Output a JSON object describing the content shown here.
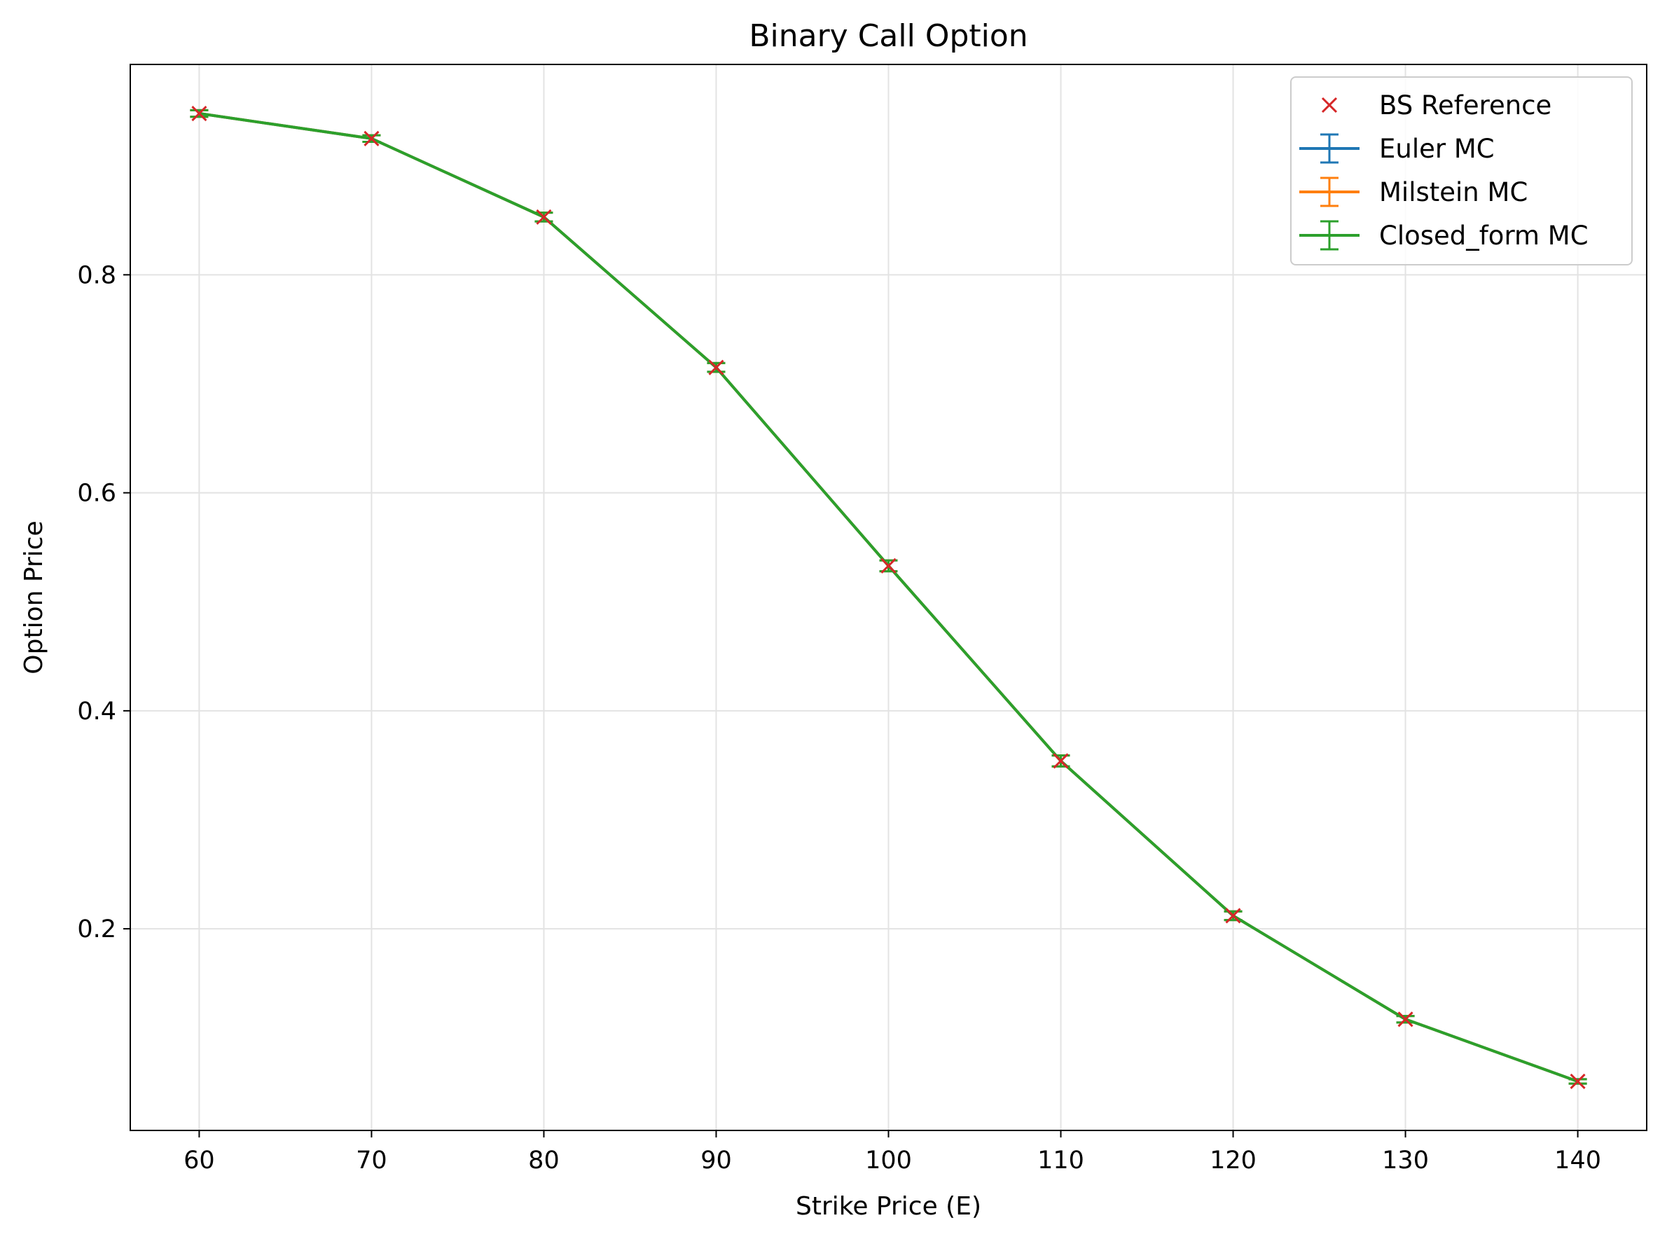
{
  "chart_data": {
    "type": "line",
    "title": "Binary Call Option",
    "xlabel": "Strike Price (E)",
    "ylabel": "Option Price",
    "x": [
      60,
      70,
      80,
      90,
      100,
      110,
      120,
      130,
      140
    ],
    "xlim": [
      56,
      144
    ],
    "ylim": [
      0.015,
      0.993
    ],
    "xticks": [
      60,
      70,
      80,
      90,
      100,
      110,
      120,
      130,
      140
    ],
    "yticks": [
      0.2,
      0.4,
      0.6,
      0.8
    ],
    "ytick_labels": [
      "0.2",
      "0.4",
      "0.6",
      "0.8"
    ],
    "grid": true,
    "legend_position": "top-right",
    "reference": {
      "name": "BS Reference",
      "marker": "x",
      "color": "#d62728",
      "values": [
        0.948,
        0.925,
        0.853,
        0.715,
        0.533,
        0.354,
        0.212,
        0.117,
        0.06
      ]
    },
    "series": [
      {
        "name": "Euler MC",
        "color": "#1f77b4",
        "values": [
          0.948,
          0.925,
          0.853,
          0.715,
          0.533,
          0.354,
          0.212,
          0.117,
          0.06
        ],
        "errors": [
          0.003,
          0.003,
          0.004,
          0.004,
          0.005,
          0.005,
          0.004,
          0.003,
          0.002
        ]
      },
      {
        "name": "Milstein MC",
        "color": "#ff7f0e",
        "values": [
          0.948,
          0.925,
          0.853,
          0.715,
          0.533,
          0.354,
          0.212,
          0.117,
          0.06
        ],
        "errors": [
          0.003,
          0.003,
          0.004,
          0.004,
          0.005,
          0.005,
          0.004,
          0.003,
          0.002
        ]
      },
      {
        "name": "Closed_form MC",
        "color": "#2ca02c",
        "values": [
          0.948,
          0.925,
          0.853,
          0.715,
          0.533,
          0.354,
          0.212,
          0.117,
          0.06
        ],
        "errors": [
          0.003,
          0.003,
          0.004,
          0.004,
          0.005,
          0.005,
          0.004,
          0.003,
          0.002
        ]
      }
    ]
  }
}
